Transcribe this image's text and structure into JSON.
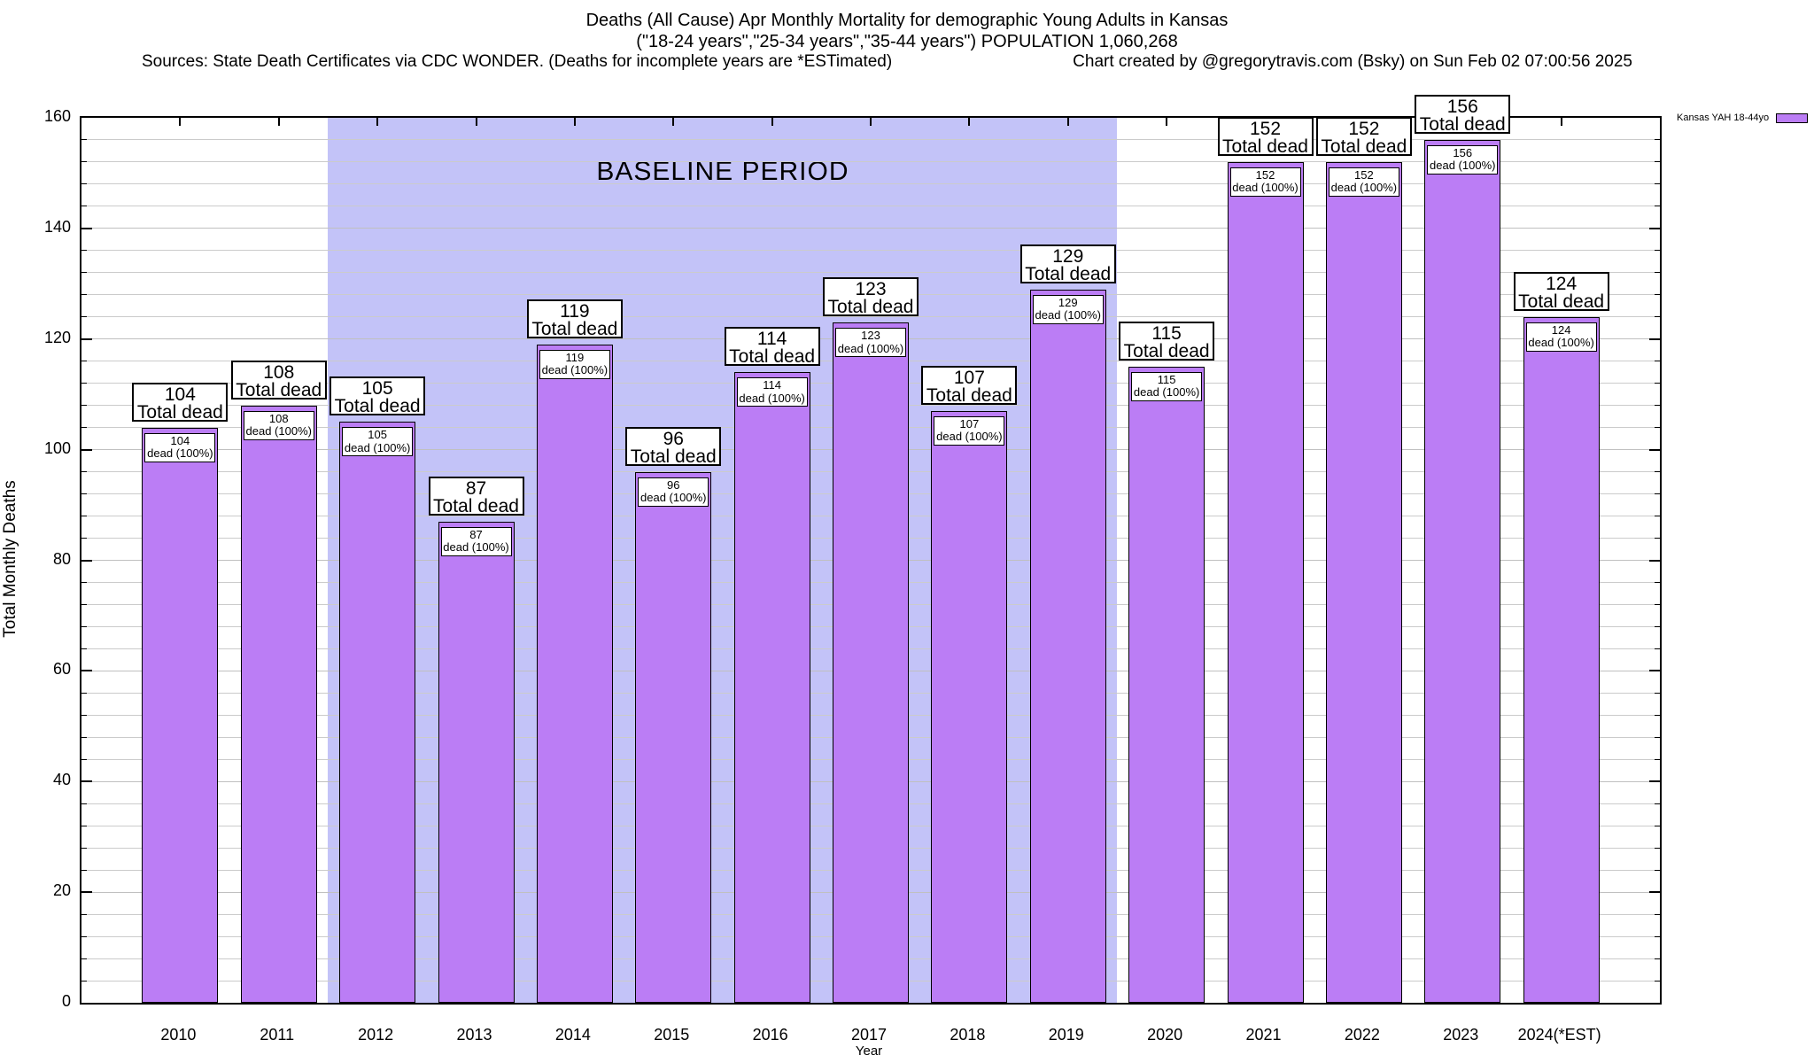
{
  "header": {
    "line1": "Deaths (All Cause) Apr Monthly Mortality for demographic Young Adults in Kansas",
    "line2": "(\"18-24 years\",\"25-34 years\",\"35-44 years\") POPULATION 1,060,268",
    "sources": "Sources: State Death Certificates via CDC WONDER. (Deaths for incomplete years are *ESTimated)",
    "credit": "Chart created by @gregorytravis.com (Bsky) on Sun Feb 02 07:00:56 2025"
  },
  "legend": {
    "label": "Kansas YAH 18-44yo",
    "swatch_color": "#bb7df5"
  },
  "baseline": {
    "label": "BASELINE PERIOD",
    "start_year": 2011.5,
    "end_year": 2019.5,
    "fill_color": "#c3c3f8"
  },
  "chart_data": {
    "type": "bar",
    "title": "Deaths (All Cause) Apr Monthly Mortality for demographic Young Adults in Kansas",
    "series_name": "Kansas YAH 18-44yo",
    "categories": [
      "2010",
      "2011",
      "2012",
      "2013",
      "2014",
      "2015",
      "2016",
      "2017",
      "2018",
      "2019",
      "2020",
      "2021",
      "2022",
      "2023",
      "2024(*EST)"
    ],
    "values": [
      104,
      108,
      105,
      87,
      119,
      96,
      114,
      123,
      107,
      129,
      115,
      152,
      152,
      156,
      124
    ],
    "bar_labels_top": [
      "104",
      "108",
      "105",
      "87",
      "119",
      "96",
      "114",
      "123",
      "107",
      "129",
      "115",
      "152",
      "152",
      "156",
      "124"
    ],
    "outer_label_suffix": "Total dead",
    "inner_label_suffix": "dead (100%)",
    "xlabel": "Year",
    "ylabel": "Total Monthly Deaths",
    "ylim": [
      0,
      160
    ],
    "yticks": [
      0,
      20,
      40,
      60,
      80,
      100,
      120,
      140,
      160
    ],
    "minor_grid_step": 4,
    "x_numeric_range": [
      2009,
      2025
    ],
    "first_year": 2010,
    "grid": "horizontal-only",
    "legend_position": "top-right-outside",
    "bar_color": "#bb7df5",
    "bar_outline_color": "#000000",
    "gridline_color": "#cbcbcb"
  }
}
